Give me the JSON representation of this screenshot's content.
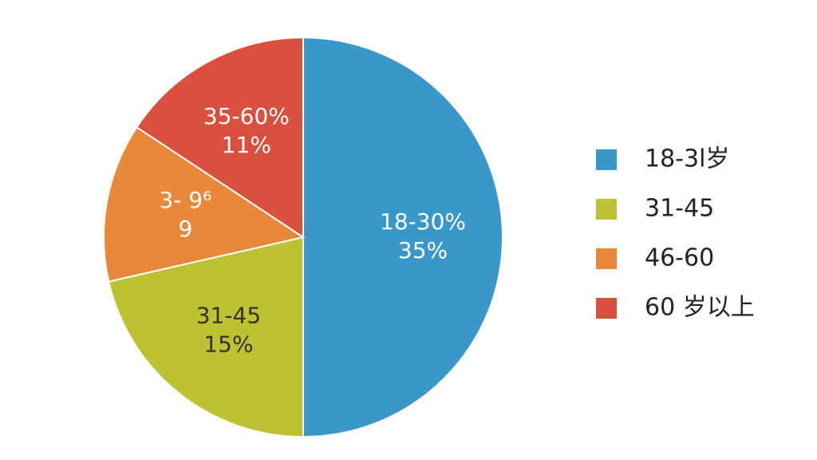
{
  "chart_data": {
    "type": "pie",
    "categories": [
      "18-3l岁",
      "31-45",
      "46-60",
      "60 岁以上"
    ],
    "slice_labels": [
      "18-30%",
      "31-45",
      "3- 9⁶",
      "35-60%"
    ],
    "values": [
      35,
      15,
      9,
      11
    ],
    "value_labels": [
      "35%",
      "15%",
      "9",
      "11%"
    ],
    "colors": [
      "#3a97c9",
      "#bcc232",
      "#e8883a",
      "#d9503f"
    ],
    "legend": "right"
  }
}
